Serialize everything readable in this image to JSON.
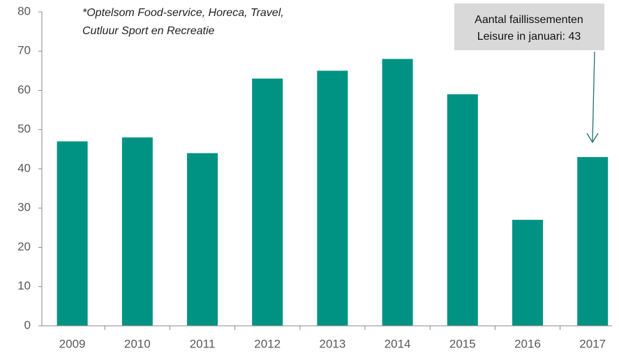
{
  "chart_data": {
    "type": "bar",
    "note": [
      "*Optelsom Food-service, Horeca, Travel,",
      "Cutluur Sport en Recreatie"
    ],
    "annotation": [
      "Aantal faillissementen",
      "Leisure in januari: 43"
    ],
    "categories": [
      "2009",
      "2010",
      "2011",
      "2012",
      "2013",
      "2014",
      "2015",
      "2016",
      "2017"
    ],
    "values": [
      47,
      48,
      44,
      63,
      65,
      68,
      59,
      27,
      43
    ],
    "color": "#009383",
    "ylim": [
      0,
      80
    ],
    "yticks": [
      0,
      10,
      20,
      30,
      40,
      50,
      60,
      70,
      80
    ],
    "grid": false
  }
}
